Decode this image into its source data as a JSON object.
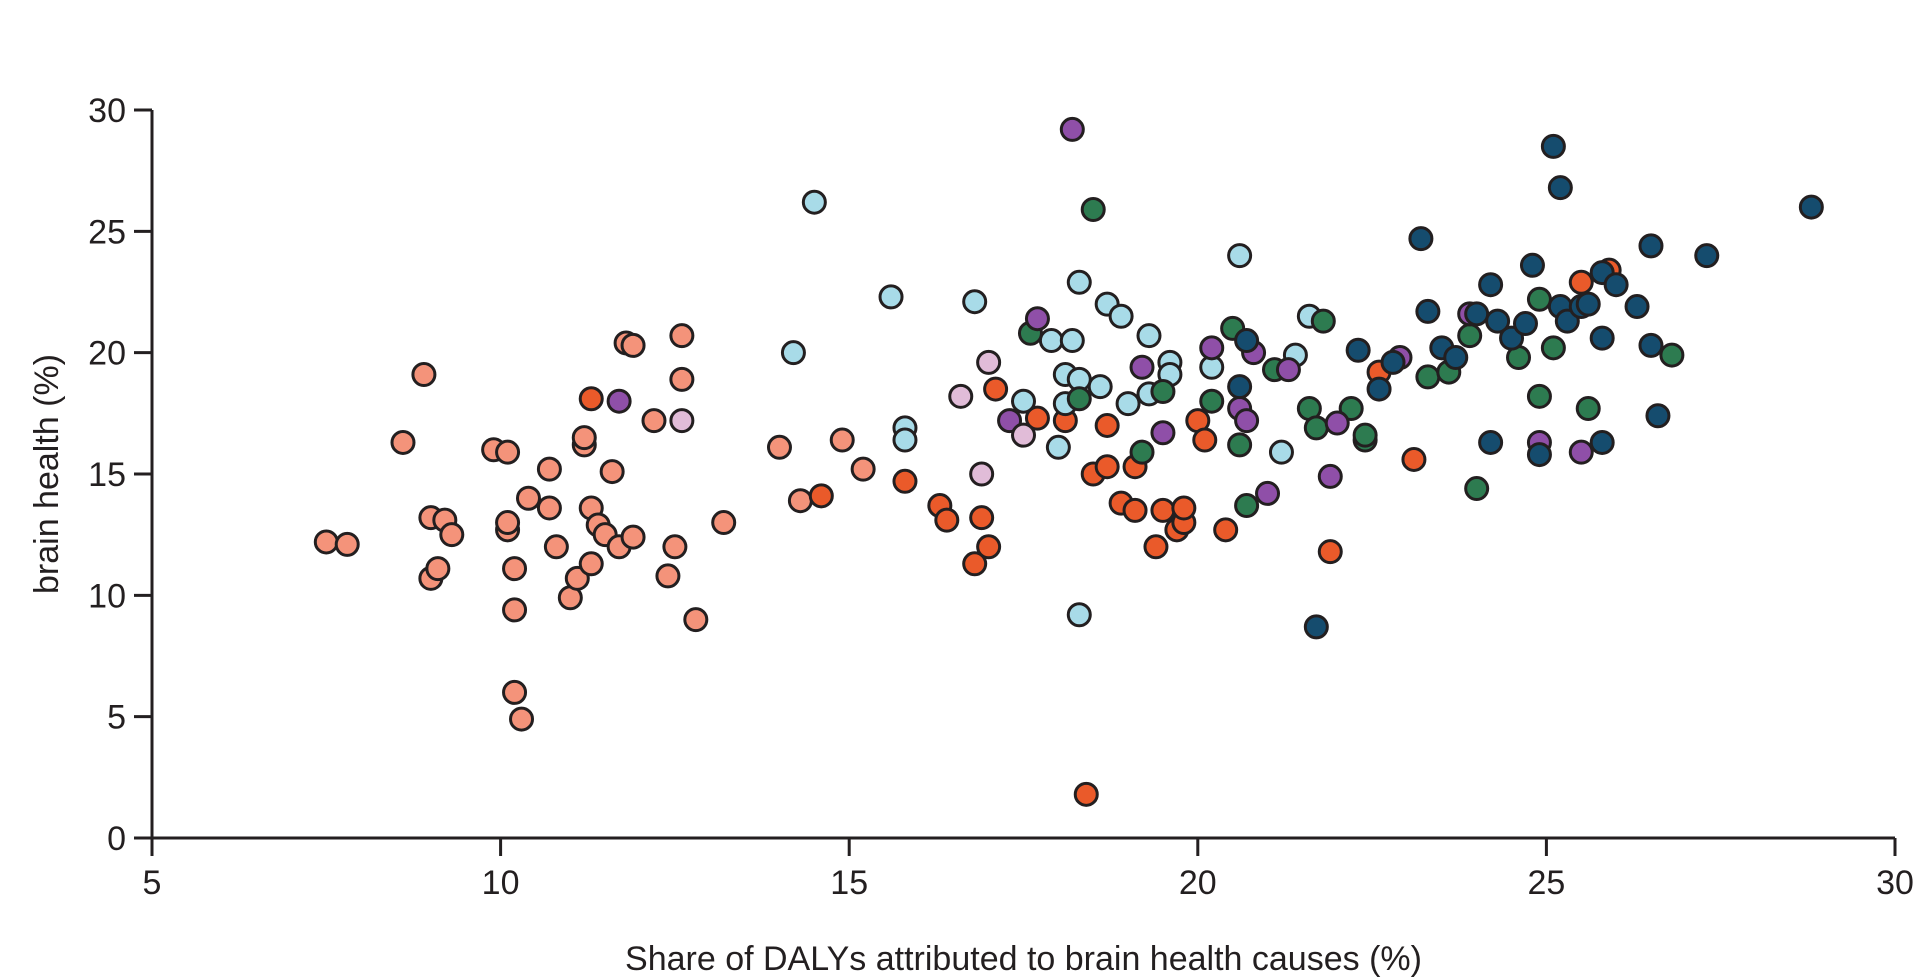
{
  "chart_data": {
    "type": "scatter",
    "xlabel": "Share of DALYs attributed to brain health causes (%)",
    "ylabel": "brain health (%)",
    "xlim": [
      5,
      30
    ],
    "ylim": [
      0,
      30
    ],
    "xticks": [
      "5",
      "10",
      "15",
      "20",
      "25",
      "30"
    ],
    "yticks": [
      "0",
      "5",
      "10",
      "15",
      "20",
      "25",
      "30"
    ],
    "grid": false,
    "legend": "none",
    "series": [
      {
        "color": "#f4937a",
        "points": [
          [
            7.5,
            12.2
          ],
          [
            7.8,
            12.1
          ],
          [
            8.6,
            16.3
          ],
          [
            8.9,
            19.1
          ],
          [
            9.0,
            10.7
          ],
          [
            9.0,
            13.2
          ],
          [
            9.1,
            11.1
          ],
          [
            9.2,
            13.1
          ],
          [
            9.3,
            12.5
          ],
          [
            9.9,
            16.0
          ],
          [
            10.1,
            15.9
          ],
          [
            10.1,
            12.7
          ],
          [
            10.1,
            13.0
          ],
          [
            10.2,
            11.1
          ],
          [
            10.2,
            9.4
          ],
          [
            10.2,
            6.0
          ],
          [
            10.3,
            4.9
          ],
          [
            10.4,
            14.0
          ],
          [
            10.7,
            15.2
          ],
          [
            10.7,
            13.6
          ],
          [
            10.8,
            12.0
          ],
          [
            11.0,
            9.9
          ],
          [
            11.1,
            10.7
          ],
          [
            11.2,
            16.2
          ],
          [
            11.2,
            16.5
          ],
          [
            11.3,
            11.3
          ],
          [
            11.3,
            13.6
          ],
          [
            11.4,
            12.9
          ],
          [
            11.5,
            12.5
          ],
          [
            11.6,
            15.1
          ],
          [
            11.7,
            12.0
          ],
          [
            11.8,
            20.4
          ],
          [
            11.9,
            20.3
          ],
          [
            11.9,
            12.4
          ],
          [
            12.2,
            17.2
          ],
          [
            12.4,
            10.8
          ],
          [
            12.5,
            12.0
          ],
          [
            12.6,
            20.7
          ],
          [
            12.6,
            18.9
          ],
          [
            12.8,
            9.0
          ],
          [
            13.2,
            13.0
          ],
          [
            14.0,
            16.1
          ],
          [
            14.3,
            13.9
          ],
          [
            14.9,
            16.4
          ],
          [
            15.2,
            15.2
          ]
        ]
      },
      {
        "color": "#ea5a2a",
        "points": [
          [
            11.3,
            18.1
          ],
          [
            14.6,
            14.1
          ],
          [
            15.8,
            14.7
          ],
          [
            16.3,
            13.7
          ],
          [
            16.4,
            13.1
          ],
          [
            16.8,
            11.3
          ],
          [
            16.9,
            13.2
          ],
          [
            17.0,
            12.0
          ],
          [
            17.1,
            18.5
          ],
          [
            17.7,
            17.3
          ],
          [
            18.1,
            17.2
          ],
          [
            18.4,
            1.8
          ],
          [
            18.5,
            15.0
          ],
          [
            18.7,
            15.3
          ],
          [
            18.7,
            17.0
          ],
          [
            18.9,
            13.8
          ],
          [
            19.1,
            13.5
          ],
          [
            19.1,
            15.3
          ],
          [
            19.4,
            12.0
          ],
          [
            19.5,
            13.5
          ],
          [
            19.7,
            12.7
          ],
          [
            19.8,
            13.0
          ],
          [
            19.8,
            13.6
          ],
          [
            20.0,
            17.2
          ],
          [
            20.1,
            16.4
          ],
          [
            20.4,
            12.7
          ],
          [
            21.9,
            11.8
          ],
          [
            22.6,
            19.2
          ],
          [
            23.1,
            15.6
          ],
          [
            25.5,
            22.9
          ],
          [
            25.9,
            23.4
          ]
        ]
      },
      {
        "color": "#a8dbe8",
        "points": [
          [
            14.2,
            20.0
          ],
          [
            14.5,
            26.2
          ],
          [
            15.6,
            22.3
          ],
          [
            15.8,
            16.9
          ],
          [
            15.8,
            16.4
          ],
          [
            16.8,
            22.1
          ],
          [
            17.5,
            18.0
          ],
          [
            17.9,
            20.5
          ],
          [
            18.0,
            16.1
          ],
          [
            18.1,
            19.1
          ],
          [
            18.1,
            17.9
          ],
          [
            18.2,
            20.5
          ],
          [
            18.3,
            22.9
          ],
          [
            18.3,
            18.9
          ],
          [
            18.3,
            9.2
          ],
          [
            18.6,
            18.6
          ],
          [
            18.7,
            22.0
          ],
          [
            18.9,
            21.5
          ],
          [
            19.0,
            17.9
          ],
          [
            19.3,
            18.3
          ],
          [
            19.3,
            20.7
          ],
          [
            19.6,
            19.6
          ],
          [
            19.6,
            19.1
          ],
          [
            20.2,
            19.4
          ],
          [
            20.6,
            24.0
          ],
          [
            21.2,
            15.9
          ],
          [
            21.4,
            19.9
          ],
          [
            21.6,
            21.5
          ]
        ]
      },
      {
        "color": "#2d7b50",
        "points": [
          [
            17.6,
            20.8
          ],
          [
            18.3,
            18.1
          ],
          [
            18.5,
            25.9
          ],
          [
            19.2,
            15.9
          ],
          [
            19.5,
            18.4
          ],
          [
            20.2,
            18.0
          ],
          [
            20.5,
            21.0
          ],
          [
            20.6,
            16.2
          ],
          [
            20.7,
            13.7
          ],
          [
            21.1,
            19.3
          ],
          [
            21.6,
            17.7
          ],
          [
            21.7,
            16.9
          ],
          [
            21.8,
            21.3
          ],
          [
            22.2,
            17.7
          ],
          [
            22.4,
            16.4
          ],
          [
            22.4,
            16.6
          ],
          [
            23.3,
            19.0
          ],
          [
            23.6,
            19.2
          ],
          [
            23.9,
            20.7
          ],
          [
            24.0,
            14.4
          ],
          [
            24.6,
            19.8
          ],
          [
            24.9,
            18.2
          ],
          [
            24.9,
            22.2
          ],
          [
            25.1,
            20.2
          ],
          [
            25.6,
            17.7
          ],
          [
            26.8,
            19.9
          ]
        ]
      },
      {
        "color": "#8f4fa8",
        "points": [
          [
            11.7,
            18.0
          ],
          [
            17.3,
            17.2
          ],
          [
            17.7,
            21.4
          ],
          [
            18.2,
            29.2
          ],
          [
            19.2,
            19.4
          ],
          [
            19.5,
            16.7
          ],
          [
            20.2,
            20.2
          ],
          [
            20.6,
            17.7
          ],
          [
            20.7,
            17.2
          ],
          [
            20.8,
            20.0
          ],
          [
            21.0,
            14.2
          ],
          [
            21.3,
            19.3
          ],
          [
            21.9,
            14.9
          ],
          [
            22.0,
            17.1
          ],
          [
            22.9,
            19.8
          ],
          [
            23.9,
            21.6
          ],
          [
            24.9,
            16.3
          ],
          [
            25.5,
            15.9
          ]
        ]
      },
      {
        "color": "#e1bcd8",
        "points": [
          [
            12.6,
            17.2
          ],
          [
            16.6,
            18.2
          ],
          [
            16.9,
            15.0
          ],
          [
            17.0,
            19.6
          ],
          [
            17.5,
            16.6
          ]
        ]
      },
      {
        "color": "#154c6e",
        "points": [
          [
            20.6,
            18.6
          ],
          [
            20.7,
            20.5
          ],
          [
            21.7,
            8.7
          ],
          [
            22.3,
            20.1
          ],
          [
            22.6,
            18.5
          ],
          [
            22.8,
            19.6
          ],
          [
            23.2,
            24.7
          ],
          [
            23.3,
            21.7
          ],
          [
            23.5,
            20.2
          ],
          [
            23.7,
            19.8
          ],
          [
            24.0,
            21.6
          ],
          [
            24.2,
            22.8
          ],
          [
            24.2,
            16.3
          ],
          [
            24.3,
            21.3
          ],
          [
            24.5,
            20.6
          ],
          [
            24.7,
            21.2
          ],
          [
            24.8,
            23.6
          ],
          [
            24.9,
            15.8
          ],
          [
            25.1,
            28.5
          ],
          [
            25.2,
            26.8
          ],
          [
            25.2,
            21.9
          ],
          [
            25.3,
            21.3
          ],
          [
            25.5,
            21.9
          ],
          [
            25.6,
            22.0
          ],
          [
            25.8,
            23.3
          ],
          [
            25.8,
            16.3
          ],
          [
            25.8,
            20.6
          ],
          [
            26.0,
            22.8
          ],
          [
            26.3,
            21.9
          ],
          [
            26.5,
            24.4
          ],
          [
            26.5,
            20.3
          ],
          [
            26.6,
            17.4
          ],
          [
            27.3,
            24.0
          ],
          [
            28.8,
            26.0
          ]
        ]
      }
    ]
  }
}
